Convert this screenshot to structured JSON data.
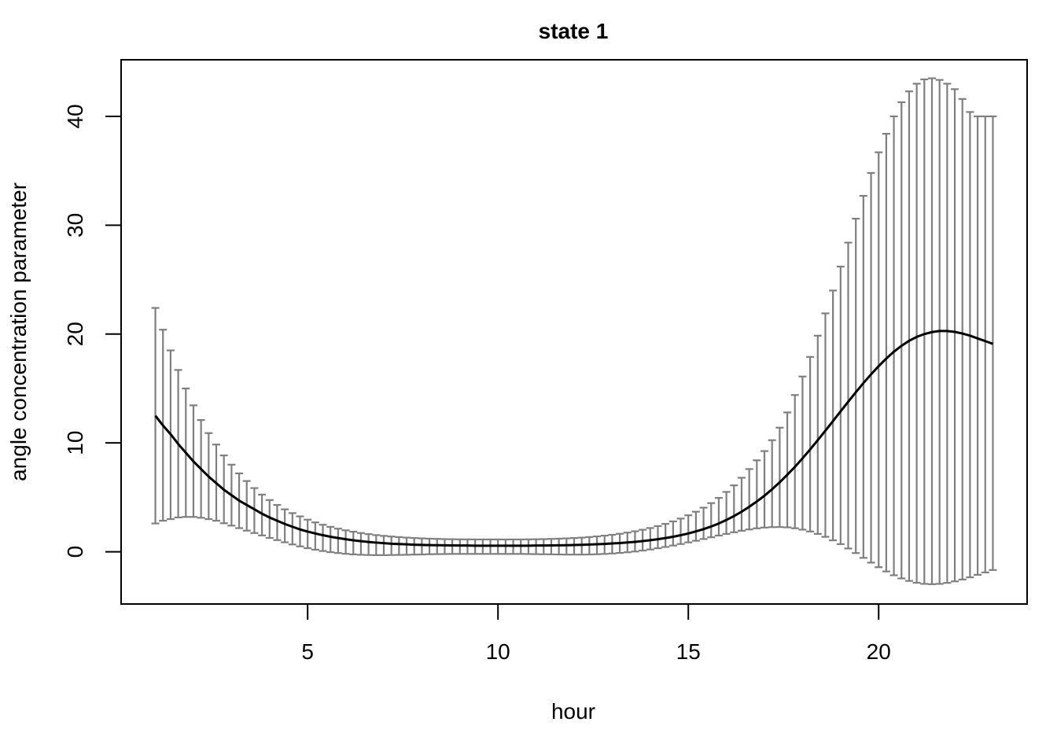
{
  "chart_data": {
    "type": "line",
    "title": "state 1",
    "xlabel": "hour",
    "ylabel": "angle concentration parameter",
    "xlim": [
      0.1,
      23.9
    ],
    "ylim": [
      -4.8,
      45.2
    ],
    "x_ticks": [
      5,
      10,
      15,
      20
    ],
    "y_ticks": [
      0,
      10,
      20,
      30,
      40
    ],
    "grid": false,
    "colors": {
      "line": "#000000",
      "errorbar": "#7f7f7f",
      "axis": "#000000"
    },
    "series": [
      {
        "x": [
          1.0,
          1.2,
          1.4,
          1.6,
          1.8,
          2.0,
          2.2,
          2.4,
          2.6,
          2.8,
          3.0,
          3.2,
          3.4,
          3.6,
          3.8,
          4.0,
          4.2,
          4.4,
          4.6,
          4.8,
          5.0,
          5.2,
          5.4,
          5.6,
          5.8,
          6.0,
          6.2,
          6.4,
          6.6,
          6.8,
          7.0,
          7.2,
          7.4,
          7.6,
          7.8,
          8.0,
          8.2,
          8.4,
          8.6,
          8.8,
          9.0,
          9.2,
          9.4,
          9.6,
          9.8,
          10.0,
          10.2,
          10.4,
          10.6,
          10.8,
          11.0,
          11.2,
          11.4,
          11.6,
          11.8,
          12.0,
          12.2,
          12.4,
          12.6,
          12.8,
          13.0,
          13.2,
          13.4,
          13.6,
          13.8,
          14.0,
          14.2,
          14.4,
          14.6,
          14.8,
          15.0,
          15.2,
          15.4,
          15.6,
          15.8,
          16.0,
          16.2,
          16.4,
          16.6,
          16.8,
          17.0,
          17.2,
          17.4,
          17.6,
          17.8,
          18.0,
          18.2,
          18.4,
          18.6,
          18.8,
          19.0,
          19.2,
          19.4,
          19.6,
          19.8,
          20.0,
          20.2,
          20.4,
          20.6,
          20.8,
          21.0,
          21.2,
          21.4,
          21.6,
          21.8,
          22.0,
          22.2,
          22.4,
          22.6,
          22.8,
          23.0
        ],
        "y": [
          12.5,
          11.6,
          10.8,
          9.9,
          9.1,
          8.3,
          7.6,
          6.9,
          6.3,
          5.7,
          5.2,
          4.7,
          4.3,
          3.9,
          3.5,
          3.15,
          2.85,
          2.55,
          2.3,
          2.05,
          1.85,
          1.68,
          1.52,
          1.38,
          1.26,
          1.15,
          1.05,
          0.97,
          0.9,
          0.84,
          0.79,
          0.74,
          0.71,
          0.68,
          0.65,
          0.63,
          0.61,
          0.6,
          0.59,
          0.58,
          0.57,
          0.57,
          0.56,
          0.56,
          0.56,
          0.56,
          0.56,
          0.56,
          0.56,
          0.56,
          0.57,
          0.57,
          0.58,
          0.59,
          0.6,
          0.62,
          0.64,
          0.66,
          0.69,
          0.72,
          0.76,
          0.8,
          0.85,
          0.91,
          0.98,
          1.06,
          1.15,
          1.26,
          1.38,
          1.52,
          1.68,
          1.87,
          2.08,
          2.32,
          2.6,
          2.92,
          3.28,
          3.68,
          4.13,
          4.62,
          5.15,
          5.74,
          6.38,
          7.07,
          7.8,
          8.58,
          9.4,
          10.25,
          11.12,
          12.0,
          12.9,
          13.78,
          14.65,
          15.5,
          16.3,
          17.05,
          17.75,
          18.38,
          18.92,
          19.38,
          19.74,
          20.0,
          20.18,
          20.28,
          20.28,
          20.2,
          20.05,
          19.85,
          19.6,
          19.35,
          19.1
        ],
        "lower": [
          2.6,
          2.85,
          3.0,
          3.15,
          3.2,
          3.2,
          3.12,
          3.0,
          2.85,
          2.62,
          2.4,
          2.17,
          1.94,
          1.72,
          1.5,
          1.27,
          1.07,
          0.87,
          0.67,
          0.49,
          0.33,
          0.19,
          0.07,
          -0.04,
          -0.12,
          -0.19,
          -0.24,
          -0.28,
          -0.3,
          -0.31,
          -0.31,
          -0.3,
          -0.29,
          -0.28,
          -0.26,
          -0.25,
          -0.23,
          -0.22,
          -0.21,
          -0.2,
          -0.2,
          -0.2,
          -0.2,
          -0.2,
          -0.2,
          -0.2,
          -0.2,
          -0.2,
          -0.2,
          -0.21,
          -0.22,
          -0.23,
          -0.24,
          -0.25,
          -0.26,
          -0.26,
          -0.26,
          -0.25,
          -0.23,
          -0.2,
          -0.16,
          -0.11,
          -0.05,
          0.02,
          0.11,
          0.21,
          0.32,
          0.44,
          0.57,
          0.71,
          0.86,
          1.01,
          1.17,
          1.33,
          1.49,
          1.64,
          1.79,
          1.93,
          2.05,
          2.15,
          2.22,
          2.26,
          2.27,
          2.24,
          2.16,
          2.03,
          1.86,
          1.64,
          1.37,
          1.05,
          0.7,
          0.3,
          -0.12,
          -0.56,
          -1.0,
          -1.42,
          -1.81,
          -2.16,
          -2.45,
          -2.68,
          -2.85,
          -2.95,
          -2.98,
          -2.95,
          -2.86,
          -2.72,
          -2.55,
          -2.35,
          -2.12,
          -1.9,
          -1.68
        ],
        "upper": [
          22.4,
          20.4,
          18.5,
          16.7,
          15.0,
          13.45,
          12.1,
          10.9,
          9.85,
          8.85,
          8.0,
          7.2,
          6.5,
          5.85,
          5.25,
          4.75,
          4.3,
          3.9,
          3.55,
          3.25,
          2.95,
          2.7,
          2.48,
          2.29,
          2.12,
          1.97,
          1.84,
          1.72,
          1.62,
          1.53,
          1.46,
          1.4,
          1.35,
          1.3,
          1.26,
          1.23,
          1.2,
          1.18,
          1.16,
          1.15,
          1.14,
          1.14,
          1.13,
          1.13,
          1.13,
          1.13,
          1.13,
          1.13,
          1.13,
          1.14,
          1.15,
          1.16,
          1.18,
          1.2,
          1.23,
          1.26,
          1.3,
          1.35,
          1.41,
          1.48,
          1.56,
          1.65,
          1.76,
          1.88,
          2.02,
          2.18,
          2.36,
          2.56,
          2.79,
          3.05,
          3.35,
          3.68,
          4.05,
          4.47,
          4.95,
          5.5,
          6.1,
          6.8,
          7.6,
          8.4,
          9.25,
          10.25,
          11.4,
          12.8,
          14.4,
          16.1,
          17.9,
          19.85,
          21.9,
          24.0,
          26.2,
          28.4,
          30.6,
          32.7,
          34.8,
          36.7,
          38.4,
          40.0,
          41.3,
          42.3,
          43.0,
          43.4,
          43.5,
          43.35,
          43.0,
          42.5,
          41.6,
          40.4,
          40.0,
          40.0,
          40.0
        ],
        "lower_end": -1.68
      }
    ]
  }
}
